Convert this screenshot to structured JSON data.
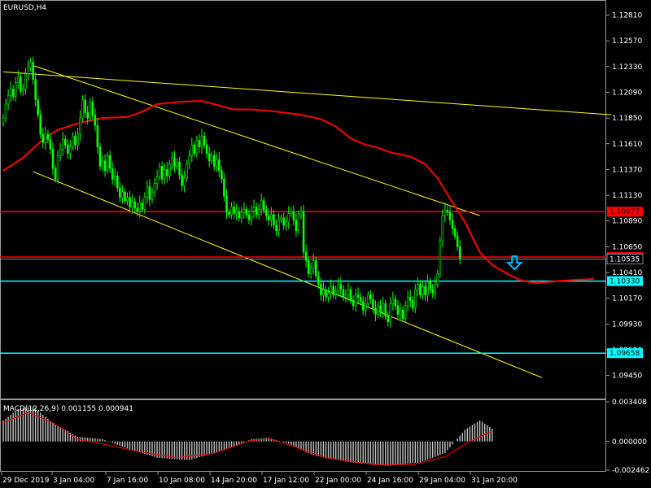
{
  "chart_data": {
    "type": "candlestick",
    "title": "EURUSD,H4",
    "background": "#000000",
    "colors": {
      "candle": "#00ff00",
      "moving_average": "#ff0000",
      "trendline": "#ffff00",
      "resistance": "#ff0000",
      "support": "#00ffff",
      "current_price_line": "#778899",
      "macd_histogram": "#c0c0c0",
      "macd_signal": "#ff0000",
      "grid": "#ffffff",
      "arrow": "#00bfff"
    },
    "price_axis": {
      "ylim": [
        1.0925,
        1.1292
      ],
      "ticks": [
        "1.12810",
        "1.12570",
        "1.12330",
        "1.12090",
        "1.11850",
        "1.11610",
        "1.11370",
        "1.11130",
        "1.10890",
        "1.10650",
        "1.10410",
        "1.10170",
        "1.09930",
        "1.09690",
        "1.09450"
      ]
    },
    "time_axis": {
      "ticks": [
        "29 Dec 2019",
        "3 Jan 04:00",
        "7 Jan 16:00",
        "10 Jan 08:00",
        "14 Jan 20:00",
        "17 Jan 12:00",
        "22 Jan 00:00",
        "24 Jan 16:00",
        "29 Jan 04:00",
        "31 Jan 20:00"
      ]
    },
    "price_levels": [
      {
        "label": "1.10977",
        "value": 1.10977,
        "role": "resistance"
      },
      {
        "label": "1.10554",
        "value": 1.10554,
        "role": "resistance"
      },
      {
        "label": "1.10535",
        "value": 1.10535,
        "role": "current"
      },
      {
        "label": "1.10330",
        "value": 1.1033,
        "role": "support"
      },
      {
        "label": "1.09658",
        "value": 1.09658,
        "role": "support"
      }
    ],
    "close_series": [
      1.1185,
      1.1198,
      1.1206,
      1.1212,
      1.1205,
      1.1218,
      1.1223,
      1.121,
      1.1212,
      1.1226,
      1.1232,
      1.1237,
      1.1221,
      1.1202,
      1.1188,
      1.117,
      1.1162,
      1.117,
      1.1165,
      1.1156,
      1.1138,
      1.1128,
      1.115,
      1.1156,
      1.1165,
      1.116,
      1.1152,
      1.1158,
      1.1168,
      1.116,
      1.117,
      1.1185,
      1.1202,
      1.119,
      1.1185,
      1.12,
      1.1188,
      1.1178,
      1.1158,
      1.114,
      1.1145,
      1.1136,
      1.115,
      1.1138,
      1.1128,
      1.1131,
      1.112,
      1.1111,
      1.1116,
      1.1108,
      1.1111,
      1.1102,
      1.1107,
      1.1101,
      1.1098,
      1.1106,
      1.11,
      1.1111,
      1.1121,
      1.1109,
      1.1116,
      1.1124,
      1.113,
      1.114,
      1.1128,
      1.1137,
      1.1131,
      1.1142,
      1.1148,
      1.114,
      1.1144,
      1.1132,
      1.1122,
      1.1129,
      1.1142,
      1.115,
      1.116,
      1.1152,
      1.1164,
      1.1158,
      1.1168,
      1.116,
      1.1152,
      1.1145,
      1.115,
      1.114,
      1.1146,
      1.1136,
      1.1128,
      1.1112,
      1.1097,
      1.1095,
      1.1102,
      1.1096,
      1.1098,
      1.1092,
      1.1097,
      1.11,
      1.1095,
      1.109,
      1.1098,
      1.1102,
      1.1095,
      1.11,
      1.1108,
      1.1099,
      1.1094,
      1.109,
      1.1095,
      1.1085,
      1.108,
      1.109,
      1.1092,
      1.1085,
      1.1088,
      1.1096,
      1.1098,
      1.109,
      1.108,
      1.1095,
      1.1098,
      1.106,
      1.1052,
      1.104,
      1.1045,
      1.1052,
      1.1038,
      1.103,
      1.102,
      1.1025,
      1.1018,
      1.1022,
      1.1028,
      1.102,
      1.1024,
      1.103,
      1.1025,
      1.1018,
      1.102,
      1.1025,
      1.1015,
      1.101,
      1.102,
      1.1018,
      1.1014,
      1.1006,
      1.1012,
      1.102,
      1.1016,
      1.1008,
      1.1002,
      1.101,
      1.1004,
      1.1012,
      1.1,
      1.0995,
      1.1012,
      1.1016,
      1.101,
      1.1002,
      1.1006,
      1.0998,
      1.101,
      1.1018,
      1.1015,
      1.1008,
      1.1025,
      1.103,
      1.102,
      1.1028,
      1.102,
      1.1032,
      1.1025,
      1.1022,
      1.103,
      1.104,
      1.107,
      1.1094,
      1.1099,
      1.1097,
      1.109,
      1.1082,
      1.1075,
      1.1065,
      1.1054
    ],
    "moving_average": [
      [
        1.1136,
        0
      ],
      [
        1.1148,
        8
      ],
      [
        1.1165,
        16
      ],
      [
        1.1174,
        22
      ],
      [
        1.118,
        30
      ],
      [
        1.1185,
        40
      ],
      [
        1.1186,
        50
      ],
      [
        1.119,
        55
      ],
      [
        1.1198,
        62
      ],
      [
        1.12,
        70
      ],
      [
        1.1201,
        80
      ],
      [
        1.1196,
        88
      ],
      [
        1.1193,
        93
      ],
      [
        1.1193,
        100
      ],
      [
        1.1191,
        110
      ],
      [
        1.1188,
        120
      ],
      [
        1.1184,
        128
      ],
      [
        1.1177,
        134
      ],
      [
        1.1166,
        140
      ],
      [
        1.116,
        146
      ],
      [
        1.1158,
        150
      ],
      [
        1.1153,
        156
      ],
      [
        1.1149,
        164
      ],
      [
        1.1142,
        170
      ],
      [
        1.1129,
        175
      ],
      [
        1.111,
        180
      ],
      [
        1.1088,
        186
      ],
      [
        1.106,
        192
      ],
      [
        1.1048,
        197
      ],
      [
        1.104,
        203
      ],
      [
        1.1034,
        208
      ],
      [
        1.1031,
        215
      ],
      [
        1.1033,
        223
      ],
      [
        1.1034,
        230
      ],
      [
        1.1035,
        238
      ]
    ],
    "trendlines": [
      {
        "from": [
          0,
          1.1228
        ],
        "to": [
          245,
          1.1188
        ]
      },
      {
        "from": [
          12,
          1.1234
        ],
        "to": [
          192,
          1.1094
        ]
      },
      {
        "from": [
          12,
          1.1135
        ],
        "to": [
          217,
          1.0943
        ]
      }
    ],
    "macd": {
      "label": "MACD(12,26,9) 0.001155 0.000941",
      "ylim": [
        -0.002462,
        0.003408
      ],
      "ticks": [
        "0.003408",
        "0.000000",
        "-0.002462"
      ],
      "histogram_keypoints": [
        [
          0,
          0.0018
        ],
        [
          6,
          0.0028
        ],
        [
          12,
          0.003
        ],
        [
          20,
          0.0016
        ],
        [
          30,
          0.0004
        ],
        [
          40,
          0.0002
        ],
        [
          50,
          -0.0006
        ],
        [
          62,
          -0.0014
        ],
        [
          75,
          -0.0016
        ],
        [
          85,
          -0.001
        ],
        [
          95,
          -0.0003
        ],
        [
          100,
          0.0002
        ],
        [
          107,
          0.0003
        ],
        [
          115,
          -0.0002
        ],
        [
          125,
          -0.0012
        ],
        [
          140,
          -0.0018
        ],
        [
          155,
          -0.0021
        ],
        [
          168,
          -0.0018
        ],
        [
          178,
          -0.001
        ],
        [
          186,
          0.001
        ],
        [
          192,
          0.0018
        ],
        [
          197,
          0.0011
        ]
      ],
      "signal_keypoints": [
        [
          0,
          0.0016
        ],
        [
          10,
          0.0025
        ],
        [
          20,
          0.0016
        ],
        [
          30,
          0.0002
        ],
        [
          42,
          -0.0003
        ],
        [
          55,
          -0.0009
        ],
        [
          70,
          -0.0014
        ],
        [
          85,
          -0.001
        ],
        [
          100,
          0.0001
        ],
        [
          108,
          0.0002
        ],
        [
          118,
          -0.0005
        ],
        [
          130,
          -0.0014
        ],
        [
          150,
          -0.002
        ],
        [
          165,
          -0.002
        ],
        [
          178,
          -0.0013
        ],
        [
          188,
          0.0
        ],
        [
          197,
          0.0009
        ]
      ]
    },
    "arrow": {
      "direction": "down",
      "bar_index": 206,
      "price": 1.105
    }
  }
}
